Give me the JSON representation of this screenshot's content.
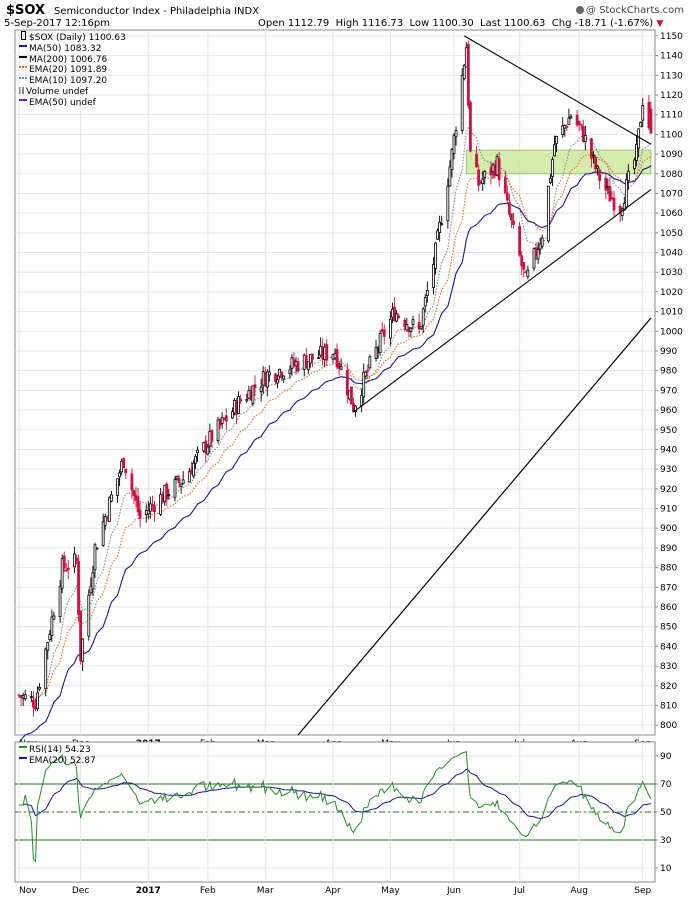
{
  "header": {
    "symbol": "$SOX",
    "name": "Semiconductor Index - Philadelphia INDX",
    "datetime": "5-Sep-2017 12:16pm",
    "ohlc": "Open 1112.79  High 1116.73  Low 1100.30  Last 1100.63  Chg -18.71 (-1.67%)",
    "change_arrow": "▼",
    "watermark": "@ StockCharts.com",
    "watermark_icon": "stockcharts-logo-icon"
  },
  "colors": {
    "up": "#000000",
    "down": "#cc1144",
    "ma50": "#1a1a8c",
    "ma200": "#000000",
    "ema20": "#e07020",
    "ema10": "#888888",
    "ema50": "#7a1fa0",
    "rsi": "#2a8a2a",
    "rsi_ema": "#1a1a8c",
    "zone": "#cfe8a0",
    "zone_border": "#7ab24a"
  },
  "legend": [
    {
      "text": "$SOX (Daily) 1100.63",
      "marker": "candle",
      "color": "#000000"
    },
    {
      "text": "MA(50) 1083.32",
      "marker": "line",
      "color": "#1a1a8c"
    },
    {
      "text": "MA(200) 1006.76",
      "marker": "line",
      "color": "#000000"
    },
    {
      "text": "EMA(20) 1091.89",
      "marker": "dots",
      "color": "#e07020"
    },
    {
      "text": "EMA(10) 1097.20",
      "marker": "dots",
      "color": "#888888"
    },
    {
      "text": "Volume undef",
      "marker": "bars",
      "color": "#888888"
    },
    {
      "text": "EMA(50) undef",
      "marker": "line",
      "color": "#7a1fa0"
    }
  ],
  "rsi_legend": [
    {
      "text": "RSI(14) 54.23",
      "marker": "rsi",
      "color": "#2a8a2a"
    },
    {
      "text": "EMA(20) 52.87",
      "marker": "line",
      "color": "#1a1a8c"
    }
  ],
  "chart_data": [
    {
      "type": "candlestick",
      "title": "$SOX (Daily) 1100.63",
      "x_tick_labels": [
        "Nov",
        "Dec",
        "2017",
        "Feb",
        "Mar",
        "Apr",
        "May",
        "Jun",
        "Jul",
        "Aug",
        "Sep"
      ],
      "y_ticks": [
        800,
        810,
        820,
        830,
        840,
        850,
        860,
        870,
        880,
        890,
        900,
        910,
        920,
        930,
        940,
        950,
        960,
        970,
        980,
        990,
        1000,
        1010,
        1020,
        1030,
        1040,
        1050,
        1060,
        1070,
        1080,
        1090,
        1100,
        1110,
        1120,
        1130,
        1140,
        1150
      ],
      "ylim": [
        795,
        1153
      ],
      "price_path": [
        [
          "2016-11-01",
          815
        ],
        [
          "2016-11-09",
          812
        ],
        [
          "2016-11-22",
          880
        ],
        [
          "2016-11-29",
          883
        ],
        [
          "2016-12-01",
          835
        ],
        [
          "2016-12-08",
          890
        ],
        [
          "2016-12-22",
          935
        ],
        [
          "2016-12-30",
          905
        ],
        [
          "2017-01-05",
          912
        ],
        [
          "2017-01-20",
          925
        ],
        [
          "2017-02-02",
          945
        ],
        [
          "2017-02-17",
          965
        ],
        [
          "2017-03-02",
          978
        ],
        [
          "2017-03-20",
          985
        ],
        [
          "2017-04-04",
          990
        ],
        [
          "2017-04-13",
          962
        ],
        [
          "2017-04-24",
          990
        ],
        [
          "2017-05-03",
          1010
        ],
        [
          "2017-05-15",
          1000
        ],
        [
          "2017-05-23",
          1040
        ],
        [
          "2017-05-31",
          1090
        ],
        [
          "2017-06-07",
          1145
        ],
        [
          "2017-06-09",
          1090
        ],
        [
          "2017-06-13",
          1075
        ],
        [
          "2017-06-22",
          1085
        ],
        [
          "2017-06-30",
          1050
        ],
        [
          "2017-07-06",
          1025
        ],
        [
          "2017-07-14",
          1050
        ],
        [
          "2017-07-20",
          1095
        ],
        [
          "2017-07-28",
          1110
        ],
        [
          "2017-08-03",
          1100
        ],
        [
          "2017-08-10",
          1080
        ],
        [
          "2017-08-15",
          1070
        ],
        [
          "2017-08-21",
          1063
        ],
        [
          "2017-08-29",
          1090
        ],
        [
          "2017-09-01",
          1118
        ],
        [
          "2017-09-05",
          1100.63
        ]
      ],
      "ma200_path": [
        [
          "2017-03-17",
          795
        ],
        [
          "2017-09-05",
          1006.76
        ]
      ],
      "ma50_last": 1083.32,
      "ema20_last": 1091.89,
      "ema10_last": 1097.2,
      "annotations": {
        "upper_trendline": [
          [
            "2017-06-06",
            1150
          ],
          [
            "2017-09-05",
            1095
          ]
        ],
        "lower_trendline": [
          [
            "2017-04-13",
            959
          ],
          [
            "2017-09-05",
            1072
          ]
        ],
        "zone": {
          "from": "2017-06-07",
          "to": "2017-09-05",
          "low": 1080,
          "high": 1092
        }
      }
    },
    {
      "type": "line",
      "title": "RSI(14) 54.23",
      "y_ticks": [
        10,
        30,
        50,
        70,
        90
      ],
      "ylim": [
        0,
        100
      ],
      "reference_lines": [
        30,
        50,
        70
      ],
      "series": [
        {
          "name": "RSI(14)",
          "last": 54.23
        },
        {
          "name": "EMA(20)",
          "last": 52.87
        }
      ],
      "x_tick_labels": [
        "Nov",
        "Dec",
        "2017",
        "Feb",
        "Mar",
        "Apr",
        "May",
        "Jun",
        "Jul",
        "Aug",
        "Sep"
      ]
    }
  ]
}
